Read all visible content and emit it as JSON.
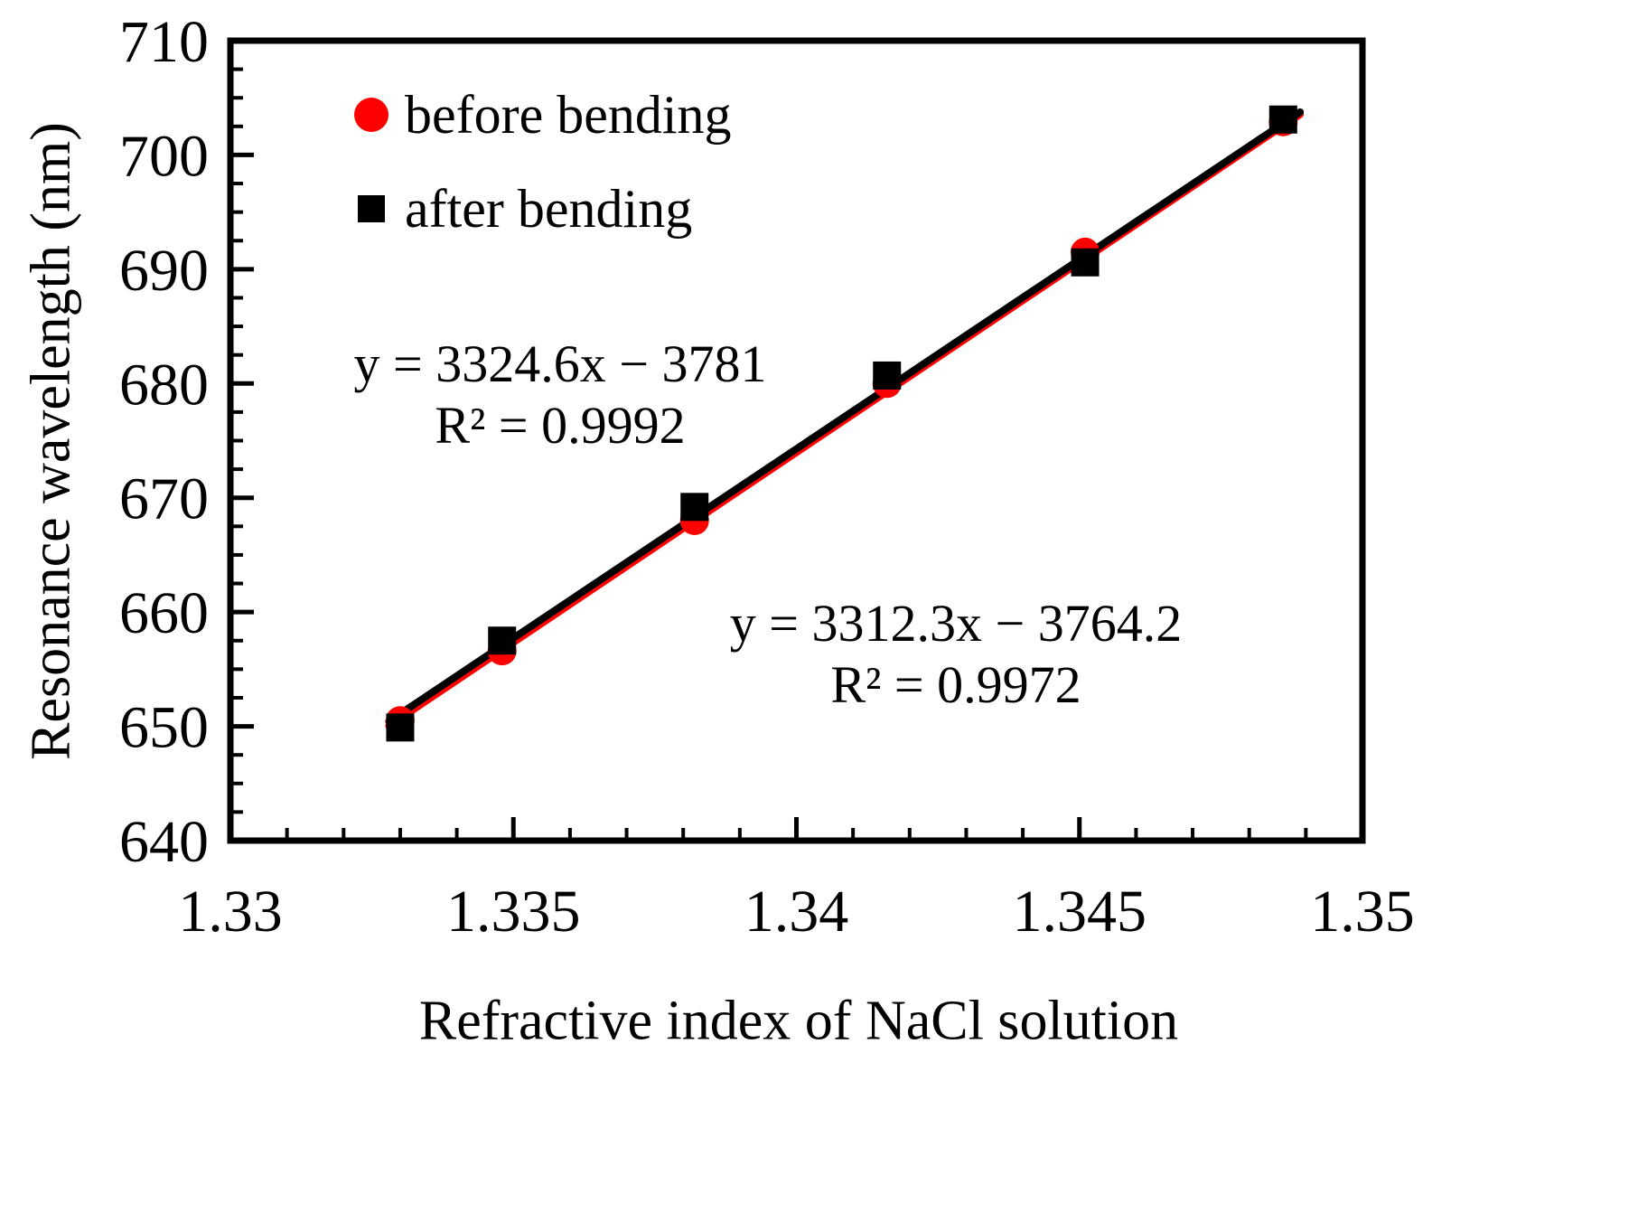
{
  "chart_data": {
    "type": "scatter",
    "title": "",
    "xlabel": "Refractive index of NaCl solution",
    "ylabel": "Resonance wavelength (nm)",
    "xlim": [
      1.33,
      1.35
    ],
    "ylim": [
      640,
      710
    ],
    "x_ticks": [
      1.33,
      1.335,
      1.34,
      1.345,
      1.35
    ],
    "x_tick_labels": [
      "1.33",
      "1.335",
      "1.34",
      "1.345",
      "1.35"
    ],
    "y_ticks": [
      640,
      650,
      660,
      670,
      680,
      690,
      700,
      710
    ],
    "y_tick_labels": [
      "640",
      "650",
      "660",
      "670",
      "680",
      "690",
      "700",
      "710"
    ],
    "x_minor_step": 0.001,
    "y_minor_step": 2.5,
    "grid": false,
    "legend_position": "top-left",
    "frame_color": "#000000",
    "series": [
      {
        "name": "before bending",
        "marker": "circle",
        "color": "#ff0000",
        "x": [
          1.333,
          1.3348,
          1.3382,
          1.3416,
          1.3451,
          1.3486
        ],
        "y": [
          650.5,
          656.6,
          668.0,
          680.0,
          691.5,
          702.9
        ],
        "fit": {
          "slope": 3324.6,
          "intercept": -3781,
          "r2": 0.9992
        }
      },
      {
        "name": "after bending",
        "marker": "square",
        "color": "#000000",
        "x": [
          1.333,
          1.3348,
          1.3382,
          1.3416,
          1.3451,
          1.3486
        ],
        "y": [
          649.9,
          657.5,
          669.2,
          680.7,
          690.6,
          703.1
        ],
        "fit": {
          "slope": 3312.3,
          "intercept": -3764.2,
          "r2": 0.9972
        }
      }
    ],
    "annotations": [
      {
        "series": "before bending",
        "lines": [
          "y = 3324.6x − 3781",
          "R² = 0.9992"
        ]
      },
      {
        "series": "after bending",
        "lines": [
          "y = 3312.3x − 3764.2",
          "R² = 0.9972"
        ]
      }
    ]
  }
}
